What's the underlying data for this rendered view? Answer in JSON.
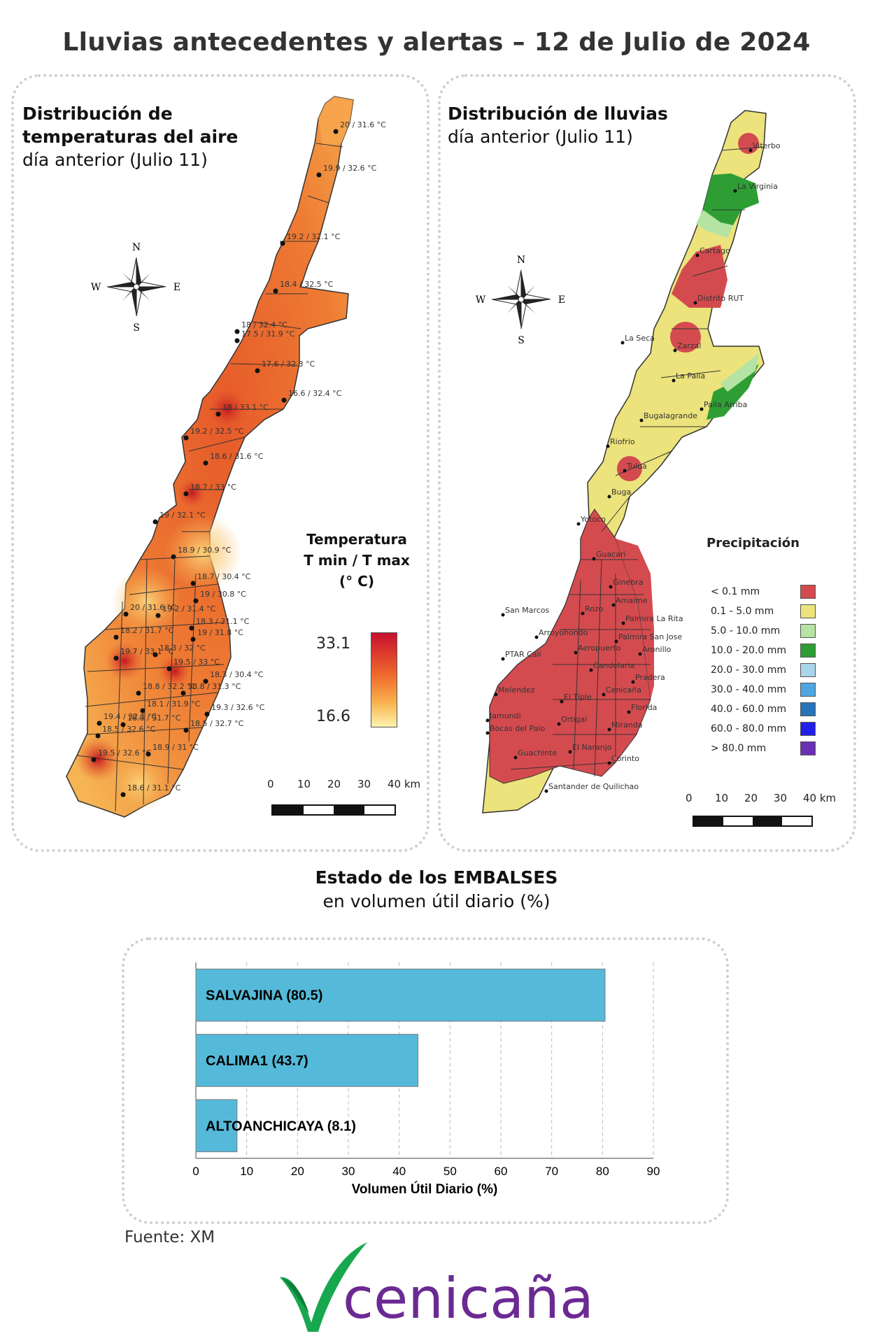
{
  "header": {
    "title": "Lluvias antecedentes y alertas – 12 de Julio de 2024"
  },
  "temp_panel": {
    "title_bold_1": "Distribución de",
    "title_bold_2": "temperaturas del aire",
    "subtitle": "día anterior (Julio 11)",
    "compass": {
      "n": "N",
      "s": "S",
      "e": "E",
      "w": "W"
    },
    "legend": {
      "title_1": "Temperatura",
      "title_2": "T min / T max",
      "title_3": "(° C)",
      "max": "33.1",
      "min": "16.6"
    },
    "scale": {
      "ticks": [
        "0",
        "10",
        "20",
        "30",
        "40 km"
      ]
    },
    "labels": [
      "20 / 31.6 °C",
      "19.9 / 32.6 °C",
      "19.2 / 32.1 °C",
      "18.4 / 32.5 °C",
      "18 / 32.4 °C",
      "17.5 / 31.9 °C",
      "17.6 / 32.3 °C",
      "16.6 / 32.4 °C",
      "18 / 33.1 °C",
      "19.2 / 32.5 °C",
      "18.6 / 31.6 °C",
      "18.7 / 33 °C",
      "19 / 32.1 °C",
      "18.9 / 30.9 °C",
      "18.7 / 30.4 °C",
      "19 / 30.8 °C",
      "20 / 31.6 °C",
      "19.2 / 31.4 °C",
      "18.3 / 31.1 °C",
      "18.2 / 31.7 °C",
      "19 / 31.8 °C",
      "19.7 / 33.1 °C",
      "18.3 / 32 °C",
      "19.5 / 33 °C",
      "18.3 / 30.4 °C",
      "18.8 / 32.2 °C",
      "18.8 / 31.3 °C",
      "18.1 / 31.9 °C",
      "19.3 / 32.6 °C",
      "19.4 / 32.1 °C",
      "18.8 / 31.7 °C",
      "18.5 / 32.6 °C",
      "18.5 / 32.7 °C",
      "19.5 / 32.6 °C",
      "18.9 / 31 °C",
      "18.6 / 31.1 °C"
    ]
  },
  "rain_panel": {
    "title_bold": "Distribución de lluvias",
    "subtitle": "día anterior (Julio 11)",
    "compass": {
      "n": "N",
      "s": "S",
      "e": "E",
      "w": "W"
    },
    "legend": {
      "title": "Precipitación",
      "items": [
        {
          "label": "< 0.1 mm",
          "color": "#d44b4f"
        },
        {
          "label": "0.1 - 5.0 mm",
          "color": "#ece37c"
        },
        {
          "label": "5.0 - 10.0 mm",
          "color": "#b5e3a3"
        },
        {
          "label": "10.0 - 20.0 mm",
          "color": "#2e9e34"
        },
        {
          "label": "20.0 - 30.0 mm",
          "color": "#a9d4ea"
        },
        {
          "label": "30.0 - 40.0 mm",
          "color": "#4fa6e0"
        },
        {
          "label": "40.0 - 60.0 mm",
          "color": "#2874b8"
        },
        {
          "label": "60.0 - 80.0 mm",
          "color": "#2020e8"
        },
        {
          "label": "> 80.0 mm",
          "color": "#6b2fb5"
        }
      ]
    },
    "scale": {
      "ticks": [
        "0",
        "10",
        "20",
        "30",
        "40 km"
      ]
    },
    "places": [
      "Viterbo",
      "La Virginia",
      "Cartago",
      "Distrito RUT",
      "La Seca",
      "Zarzal",
      "La Paila",
      "Paila Arriba",
      "Bugalagrande",
      "Riofrio",
      "Tulua",
      "Buga",
      "Yotoco",
      "Guacari",
      "Ginebra",
      "San Marcos",
      "Rozo",
      "Amaime",
      "Palmira La Rita",
      "Arroyohondo",
      "Palmira San Jose",
      "Aeropuerto",
      "Aronillo",
      "PTAR Cali",
      "Candelaria",
      "Pradera",
      "Melendez",
      "Cenicaña",
      "El Tiple",
      "Florida",
      "Jamundi",
      "Ortigal",
      "Bocas del Palo",
      "Miranda",
      "El Naranjo",
      "Guachinte",
      "Corinto",
      "Santander de Quilichao"
    ]
  },
  "reservoirs": {
    "title_bold": "Estado de los EMBALSES",
    "subtitle": "en volumen útil diario (%)",
    "chart_data": {
      "type": "bar",
      "orientation": "horizontal",
      "categories": [
        "SALVAJINA (80.5)",
        "CALIMA1 (43.7)",
        "ALTOANCHICAYA (8.1)"
      ],
      "values": [
        80.5,
        43.7,
        8.1
      ],
      "xlabel": "Volumen Útil Diario (%)",
      "xlim": [
        0,
        90
      ],
      "xticks": [
        "0",
        "10",
        "20",
        "30",
        "40",
        "50",
        "60",
        "70",
        "80",
        "90"
      ],
      "bar_color": "#55bad9",
      "grid": "vertical dashed"
    }
  },
  "footer": {
    "source": "Fuente: XM",
    "logo_text": "cenicaña"
  }
}
